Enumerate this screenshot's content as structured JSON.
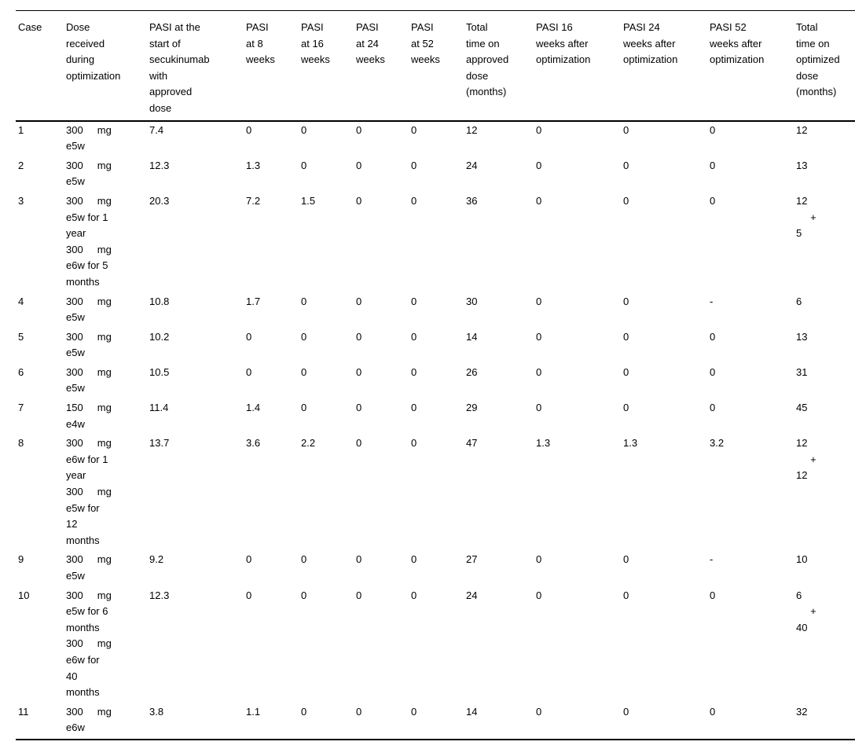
{
  "table": {
    "columns": [
      {
        "key": "case",
        "label": "Case"
      },
      {
        "key": "dose_during_optimization",
        "label": "Dose\nreceived\nduring\noptimization"
      },
      {
        "key": "pasi_start_approved",
        "label": "PASI at the\nstart of\nsecukinumab\nwith\napproved\ndose"
      },
      {
        "key": "pasi_8w",
        "label": "PASI\nat 8\nweeks"
      },
      {
        "key": "pasi_16w",
        "label": "PASI\nat 16\nweeks"
      },
      {
        "key": "pasi_24w",
        "label": "PASI\nat 24\nweeks"
      },
      {
        "key": "pasi_52w",
        "label": "PASI\nat 52\nweeks"
      },
      {
        "key": "total_time_approved",
        "label": "Total\ntime on\napproved\ndose\n(months)"
      },
      {
        "key": "pasi_16w_after_opt",
        "label": "PASI 16\nweeks after\noptimization"
      },
      {
        "key": "pasi_24w_after_opt",
        "label": "PASI 24\nweeks after\noptimization"
      },
      {
        "key": "pasi_52w_after_opt",
        "label": "PASI 52\nweeks after\noptimization"
      },
      {
        "key": "total_time_optimized",
        "label": "Total\ntime on\noptimized\ndose\n(months)"
      }
    ],
    "rows": [
      [
        "1",
        "300     mg\ne5w",
        "7.4",
        "0",
        "0",
        "0",
        "0",
        "12",
        "0",
        "0",
        "0",
        "12"
      ],
      [
        "2",
        "300     mg\ne5w",
        "12.3",
        "1.3",
        "0",
        "0",
        "0",
        "24",
        "0",
        "0",
        "0",
        "13"
      ],
      [
        "3",
        "300     mg\ne5w for 1\nyear\n300     mg\ne6w for 5\nmonths",
        "20.3",
        "7.2",
        "1.5",
        "0",
        "0",
        "36",
        "0",
        "0",
        "0",
        "12\n     +\n5"
      ],
      [
        "4",
        "300     mg\ne5w",
        "10.8",
        "1.7",
        "0",
        "0",
        "0",
        "30",
        "0",
        "0",
        "-",
        "6"
      ],
      [
        "5",
        "300     mg\ne5w",
        "10.2",
        "0",
        "0",
        "0",
        "0",
        "14",
        "0",
        "0",
        "0",
        "13"
      ],
      [
        "6",
        "300     mg\ne5w",
        "10.5",
        "0",
        "0",
        "0",
        "0",
        "26",
        "0",
        "0",
        "0",
        "31"
      ],
      [
        "7",
        "150     mg\ne4w",
        "11.4",
        "1.4",
        "0",
        "0",
        "0",
        "29",
        "0",
        "0",
        "0",
        "45"
      ],
      [
        "8",
        "300     mg\ne6w for 1\nyear\n300     mg\ne5w for\n12\nmonths",
        "13.7",
        "3.6",
        "2.2",
        "0",
        "0",
        "47",
        "1.3",
        "1.3",
        "3.2",
        "12\n     +\n12"
      ],
      [
        "9",
        "300     mg\ne5w",
        "9.2",
        "0",
        "0",
        "0",
        "0",
        "27",
        "0",
        "0",
        "-",
        "10"
      ],
      [
        "10",
        "300     mg\ne5w for 6\nmonths\n300     mg\ne6w for\n40\nmonths",
        "12.3",
        "0",
        "0",
        "0",
        "0",
        "24",
        "0",
        "0",
        "0",
        "6\n     +\n40"
      ],
      [
        "11",
        "300     mg\ne6w",
        "3.8",
        "1.1",
        "0",
        "0",
        "0",
        "14",
        "0",
        "0",
        "0",
        "32"
      ]
    ]
  }
}
